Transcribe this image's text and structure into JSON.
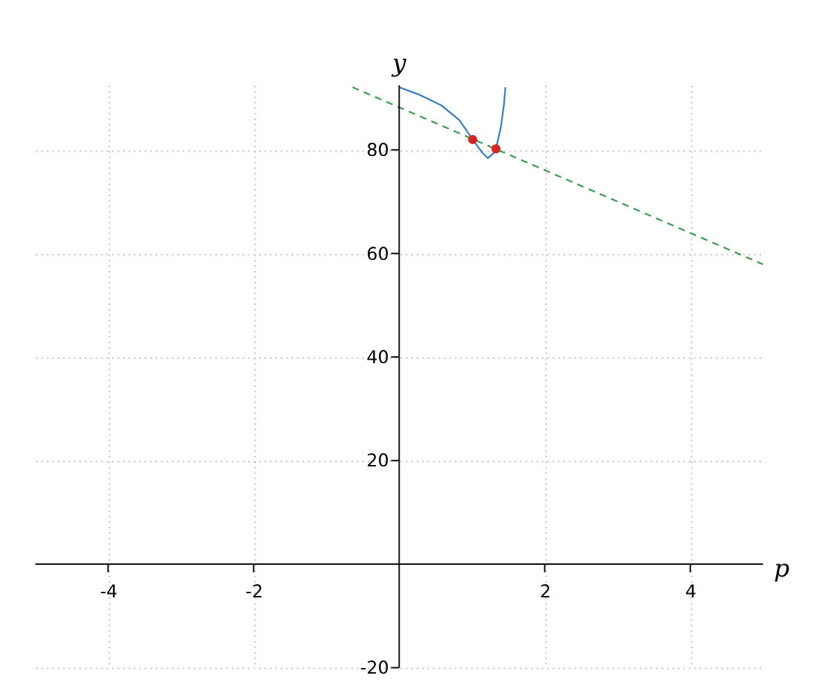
{
  "chart_data": {
    "type": "line",
    "xlabel": "p",
    "ylabel": "y",
    "xlim": [
      -5,
      5
    ],
    "ylim": [
      -20,
      92.5
    ],
    "xticks": [
      -4,
      -2,
      2,
      4
    ],
    "yticks": [
      -20,
      20,
      40,
      60,
      80
    ],
    "grid": true,
    "series": [
      {
        "type": "line",
        "color": "#3b7dc4",
        "x": [
          0,
          0.27,
          0.58,
          0.83,
          1.01,
          1.14,
          1.22,
          1.3,
          1.33,
          1.4,
          1.44,
          1.46
        ],
        "values": [
          92.1,
          90.7,
          88.6,
          85.7,
          82.0,
          79.5,
          78.4,
          79.4,
          80.2,
          84.6,
          88.8,
          92.1
        ]
      },
      {
        "type": "line",
        "color": "#3a9a50",
        "line_style": "dashed",
        "x": [
          -0.64,
          5
        ],
        "values": [
          92.1,
          57.9
        ]
      },
      {
        "type": "scatter",
        "color": "#d62728",
        "marker": "circle",
        "x": [
          1.01,
          1.33
        ],
        "values": [
          82.0,
          80.2
        ]
      }
    ]
  }
}
